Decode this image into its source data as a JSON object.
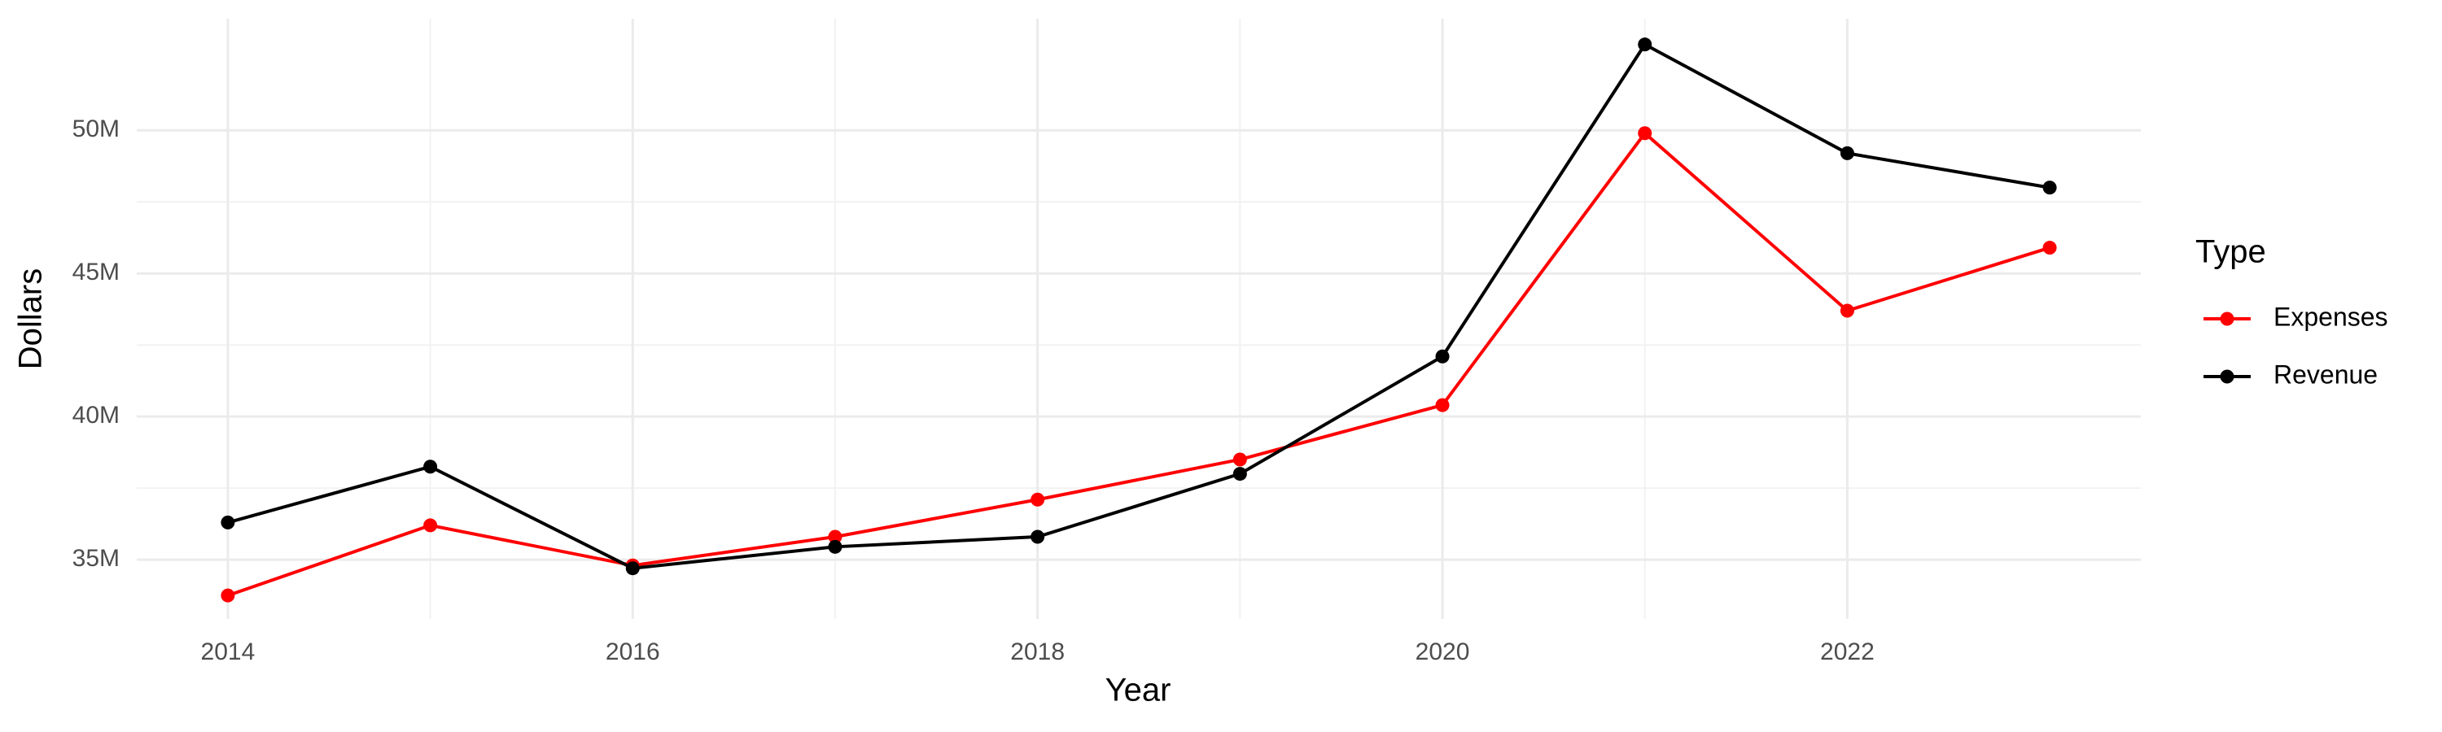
{
  "chart_data": {
    "type": "line",
    "x_label": "Year",
    "y_label": "Dollars",
    "legend_title": "Type",
    "legend_position": "right",
    "grid": true,
    "x": [
      2014,
      2015,
      2016,
      2017,
      2018,
      2019,
      2020,
      2021,
      2022,
      2023
    ],
    "series": [
      {
        "name": "Expenses",
        "color": "#ff0000",
        "values": [
          33750000,
          36200000,
          34800000,
          35800000,
          37100000,
          38500000,
          40400000,
          49900000,
          43700000,
          45900000
        ]
      },
      {
        "name": "Revenue",
        "color": "#000000",
        "values": [
          36300000,
          38250000,
          34700000,
          35450000,
          35800000,
          38000000,
          42100000,
          53000000,
          49200000,
          48000000
        ]
      }
    ],
    "xlim": [
      2013.55,
      2023.45
    ],
    "xticks": [
      2014,
      2016,
      2018,
      2020,
      2022
    ],
    "ylim": [
      32930000,
      53900000
    ],
    "yticks": [
      {
        "value": 35000000,
        "label": "35M"
      },
      {
        "value": 40000000,
        "label": "40M"
      },
      {
        "value": 45000000,
        "label": "45M"
      },
      {
        "value": 50000000,
        "label": "50M"
      }
    ]
  }
}
